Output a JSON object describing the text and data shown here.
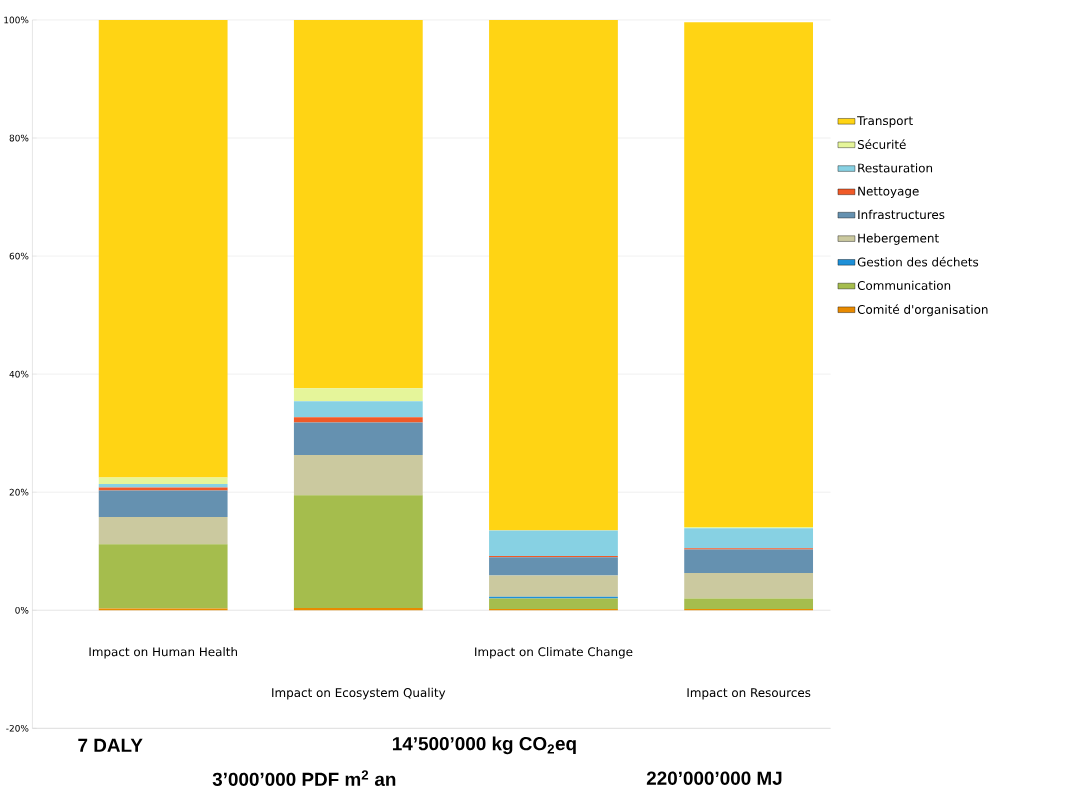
{
  "chart_data": {
    "type": "bar",
    "stacked": true,
    "categories": [
      "Impact on Human Health",
      "Impact on Ecosystem Quality",
      "Impact on Climate Change",
      "Impact on Resources"
    ],
    "series": [
      {
        "name": "Comité d'organisation",
        "color": "#e88a00",
        "values": [
          0.3,
          0.4,
          0.2,
          0.2
        ]
      },
      {
        "name": "Communication",
        "color": "#a5bd4d",
        "values": [
          10.9,
          19.1,
          1.8,
          1.8
        ]
      },
      {
        "name": "Gestion des déchets",
        "color": "#1e90d8",
        "values": [
          0,
          0,
          0.3,
          0
        ]
      },
      {
        "name": "Hebergement",
        "color": "#cbc99f",
        "values": [
          4.6,
          6.8,
          3.6,
          4.3
        ]
      },
      {
        "name": "Infrastructures",
        "color": "#6591b0",
        "values": [
          4.5,
          5.5,
          3.1,
          4.0
        ]
      },
      {
        "name": "Nettoyage",
        "color": "#f05a28",
        "values": [
          0.5,
          0.9,
          0.2,
          0.2
        ]
      },
      {
        "name": "Restauration",
        "color": "#87d1e3",
        "values": [
          0.6,
          2.7,
          4.3,
          3.4
        ]
      },
      {
        "name": "Sécurité",
        "color": "#e5f59a",
        "values": [
          1.1,
          2.2,
          0,
          0.2
        ]
      },
      {
        "name": "Transport",
        "color": "#ffd414",
        "values": [
          77.5,
          62.4,
          86.5,
          85.5
        ]
      }
    ],
    "ylim": [
      -20,
      100
    ],
    "yticks": [
      {
        "value": -20,
        "label": "-20%"
      },
      {
        "value": 0,
        "label": "0%"
      },
      {
        "value": 20,
        "label": "20%"
      },
      {
        "value": 40,
        "label": "40%"
      },
      {
        "value": 60,
        "label": "60%"
      },
      {
        "value": 80,
        "label": "80%"
      },
      {
        "value": 100,
        "label": "100%"
      }
    ],
    "grid": "y",
    "legend": "right",
    "annotations": [
      "7 DALY",
      "14’500’000 kg CO$_{2}$eq",
      "3’000’000 PDF m$^{2}$ an",
      "220’000’000 MJ"
    ]
  }
}
